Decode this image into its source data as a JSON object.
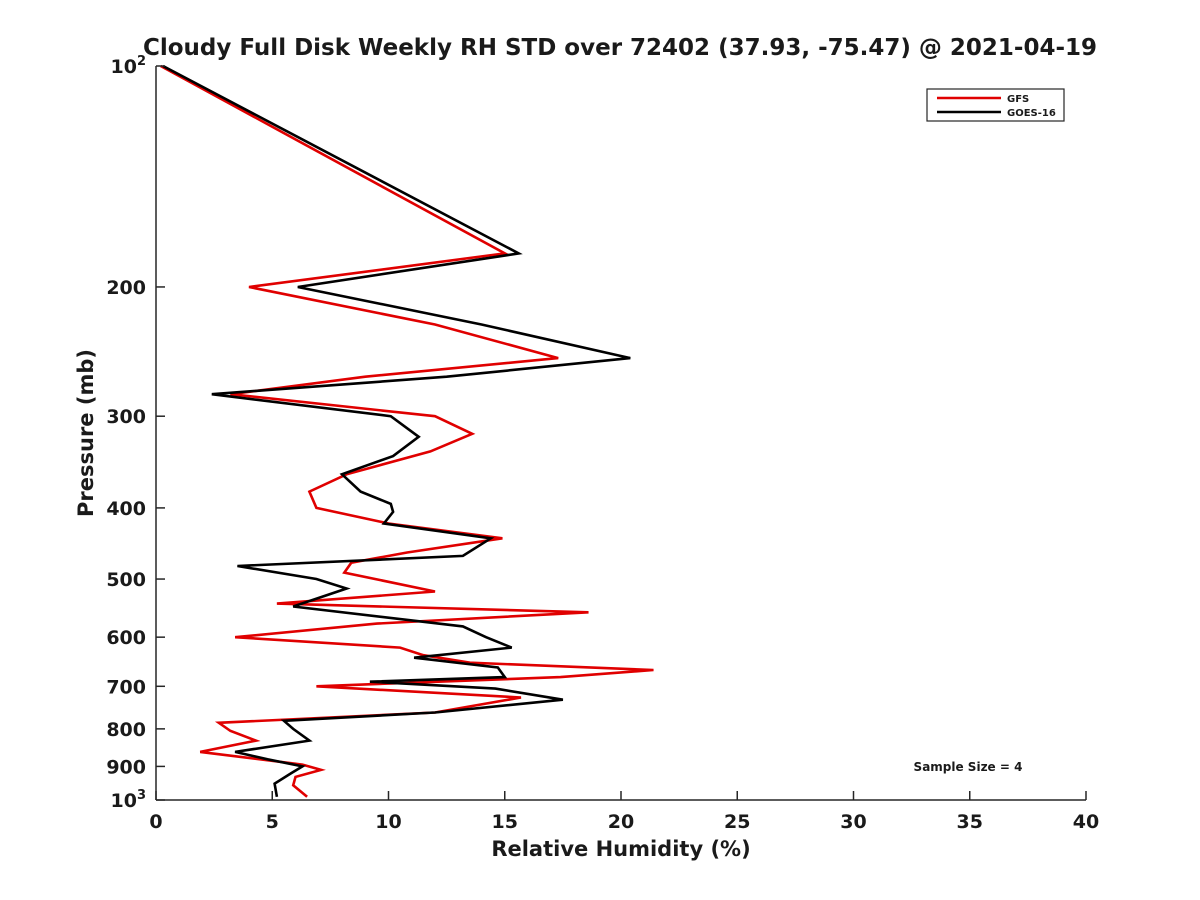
{
  "chart_data": {
    "type": "line",
    "title": "Cloudy Full Disk Weekly RH STD over 72402 (37.93, -75.47) @ 2021-04-19",
    "xlabel": "Relative Humidity (%)",
    "ylabel": "Pressure (mb)",
    "xlim": [
      0,
      40
    ],
    "ylim": [
      100,
      1000
    ],
    "y_scale": "log",
    "y_reversed": true,
    "grid": false,
    "legend_position": "top-right",
    "x_ticks": [
      0,
      5,
      10,
      15,
      20,
      25,
      30,
      35,
      40
    ],
    "x_tick_labels": [
      "0",
      "5",
      "10",
      "15",
      "20",
      "25",
      "30",
      "35",
      "40"
    ],
    "y_ticks": [
      100,
      200,
      300,
      400,
      500,
      600,
      700,
      800,
      900,
      1000
    ],
    "y_tick_labels": [
      {
        "base": "10",
        "exp": "2"
      },
      {
        "base": "200",
        "exp": ""
      },
      {
        "base": "300",
        "exp": ""
      },
      {
        "base": "400",
        "exp": ""
      },
      {
        "base": "500",
        "exp": ""
      },
      {
        "base": "600",
        "exp": ""
      },
      {
        "base": "700",
        "exp": ""
      },
      {
        "base": "800",
        "exp": ""
      },
      {
        "base": "900",
        "exp": ""
      },
      {
        "base": "10",
        "exp": "3"
      }
    ],
    "annotation": "Sample Size = 4",
    "series": [
      {
        "name": "GFS",
        "color": "#e00000",
        "points": [
          [
            0.2,
            100
          ],
          [
            15,
            180
          ],
          [
            4,
            200
          ],
          [
            12,
            225
          ],
          [
            17.3,
            250
          ],
          [
            9,
            265
          ],
          [
            3.2,
            280
          ],
          [
            12,
            300
          ],
          [
            13.6,
            317
          ],
          [
            11.8,
            335
          ],
          [
            8.2,
            360
          ],
          [
            6.6,
            380
          ],
          [
            6.9,
            400
          ],
          [
            10,
            420
          ],
          [
            14.9,
            440
          ],
          [
            10.8,
            460
          ],
          [
            8.4,
            475
          ],
          [
            8.1,
            490
          ],
          [
            12,
            520
          ],
          [
            5.2,
            540
          ],
          [
            18.6,
            555
          ],
          [
            9.5,
            575
          ],
          [
            3.4,
            600
          ],
          [
            10.5,
            620
          ],
          [
            11.5,
            635
          ],
          [
            13.5,
            650
          ],
          [
            21.4,
            665
          ],
          [
            17.4,
            680
          ],
          [
            6.9,
            700
          ],
          [
            15.7,
            725
          ],
          [
            12,
            760
          ],
          [
            2.7,
            785
          ],
          [
            3.2,
            805
          ],
          [
            4.3,
            830
          ],
          [
            1.9,
            860
          ],
          [
            6.3,
            895
          ],
          [
            7.1,
            910
          ],
          [
            6,
            930
          ],
          [
            5.9,
            955
          ],
          [
            6.5,
            990
          ]
        ]
      },
      {
        "name": "GOES-16",
        "color": "#000000",
        "points": [
          [
            0.3,
            100
          ],
          [
            15.6,
            180
          ],
          [
            6.1,
            200
          ],
          [
            14,
            225
          ],
          [
            20.4,
            250
          ],
          [
            12.5,
            265
          ],
          [
            2.4,
            280
          ],
          [
            10.1,
            300
          ],
          [
            11.3,
            320
          ],
          [
            10.2,
            340
          ],
          [
            8,
            360
          ],
          [
            8.8,
            380
          ],
          [
            10.1,
            395
          ],
          [
            10.2,
            405
          ],
          [
            9.8,
            420
          ],
          [
            14.4,
            440
          ],
          [
            13.2,
            465
          ],
          [
            3.5,
            480
          ],
          [
            6.9,
            500
          ],
          [
            8.2,
            515
          ],
          [
            5.9,
            545
          ],
          [
            13.2,
            580
          ],
          [
            14.2,
            600
          ],
          [
            15.3,
            620
          ],
          [
            11.1,
            640
          ],
          [
            14.7,
            660
          ],
          [
            15,
            680
          ],
          [
            9.2,
            690
          ],
          [
            14.6,
            705
          ],
          [
            17.5,
            730
          ],
          [
            12,
            760
          ],
          [
            5.5,
            780
          ],
          [
            5.9,
            800
          ],
          [
            6.6,
            830
          ],
          [
            3.4,
            860
          ],
          [
            4.8,
            880
          ],
          [
            6.3,
            900
          ],
          [
            5.8,
            920
          ],
          [
            5.1,
            950
          ],
          [
            5.2,
            990
          ]
        ]
      }
    ]
  }
}
